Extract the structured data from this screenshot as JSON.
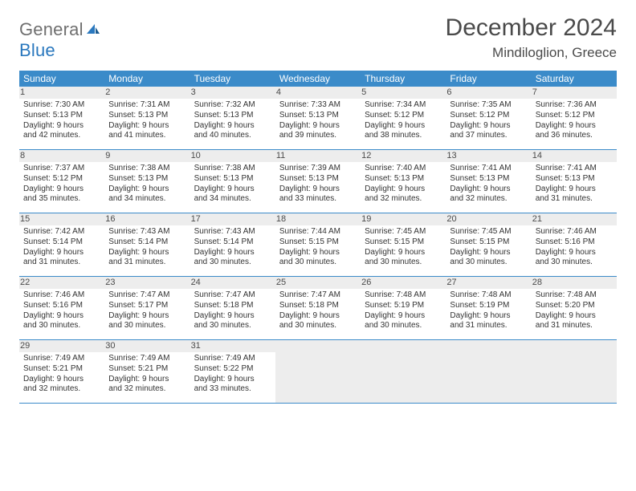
{
  "brand": {
    "part1": "General",
    "part2": "Blue"
  },
  "title": "December 2024",
  "location": "Mindiloglion, Greece",
  "colors": {
    "header_bg": "#3b8bc9",
    "header_text": "#ffffff",
    "day_num_bg": "#ededed",
    "text": "#333333",
    "title_text": "#4a4a4a",
    "border": "#3b8bc9",
    "logo_gray": "#6f6f6f",
    "logo_blue": "#2a78be"
  },
  "weekdays": [
    "Sunday",
    "Monday",
    "Tuesday",
    "Wednesday",
    "Thursday",
    "Friday",
    "Saturday"
  ],
  "weeks": [
    [
      {
        "n": "1",
        "sr": "Sunrise: 7:30 AM",
        "ss": "Sunset: 5:13 PM",
        "d1": "Daylight: 9 hours",
        "d2": "and 42 minutes."
      },
      {
        "n": "2",
        "sr": "Sunrise: 7:31 AM",
        "ss": "Sunset: 5:13 PM",
        "d1": "Daylight: 9 hours",
        "d2": "and 41 minutes."
      },
      {
        "n": "3",
        "sr": "Sunrise: 7:32 AM",
        "ss": "Sunset: 5:13 PM",
        "d1": "Daylight: 9 hours",
        "d2": "and 40 minutes."
      },
      {
        "n": "4",
        "sr": "Sunrise: 7:33 AM",
        "ss": "Sunset: 5:13 PM",
        "d1": "Daylight: 9 hours",
        "d2": "and 39 minutes."
      },
      {
        "n": "5",
        "sr": "Sunrise: 7:34 AM",
        "ss": "Sunset: 5:12 PM",
        "d1": "Daylight: 9 hours",
        "d2": "and 38 minutes."
      },
      {
        "n": "6",
        "sr": "Sunrise: 7:35 AM",
        "ss": "Sunset: 5:12 PM",
        "d1": "Daylight: 9 hours",
        "d2": "and 37 minutes."
      },
      {
        "n": "7",
        "sr": "Sunrise: 7:36 AM",
        "ss": "Sunset: 5:12 PM",
        "d1": "Daylight: 9 hours",
        "d2": "and 36 minutes."
      }
    ],
    [
      {
        "n": "8",
        "sr": "Sunrise: 7:37 AM",
        "ss": "Sunset: 5:12 PM",
        "d1": "Daylight: 9 hours",
        "d2": "and 35 minutes."
      },
      {
        "n": "9",
        "sr": "Sunrise: 7:38 AM",
        "ss": "Sunset: 5:13 PM",
        "d1": "Daylight: 9 hours",
        "d2": "and 34 minutes."
      },
      {
        "n": "10",
        "sr": "Sunrise: 7:38 AM",
        "ss": "Sunset: 5:13 PM",
        "d1": "Daylight: 9 hours",
        "d2": "and 34 minutes."
      },
      {
        "n": "11",
        "sr": "Sunrise: 7:39 AM",
        "ss": "Sunset: 5:13 PM",
        "d1": "Daylight: 9 hours",
        "d2": "and 33 minutes."
      },
      {
        "n": "12",
        "sr": "Sunrise: 7:40 AM",
        "ss": "Sunset: 5:13 PM",
        "d1": "Daylight: 9 hours",
        "d2": "and 32 minutes."
      },
      {
        "n": "13",
        "sr": "Sunrise: 7:41 AM",
        "ss": "Sunset: 5:13 PM",
        "d1": "Daylight: 9 hours",
        "d2": "and 32 minutes."
      },
      {
        "n": "14",
        "sr": "Sunrise: 7:41 AM",
        "ss": "Sunset: 5:13 PM",
        "d1": "Daylight: 9 hours",
        "d2": "and 31 minutes."
      }
    ],
    [
      {
        "n": "15",
        "sr": "Sunrise: 7:42 AM",
        "ss": "Sunset: 5:14 PM",
        "d1": "Daylight: 9 hours",
        "d2": "and 31 minutes."
      },
      {
        "n": "16",
        "sr": "Sunrise: 7:43 AM",
        "ss": "Sunset: 5:14 PM",
        "d1": "Daylight: 9 hours",
        "d2": "and 31 minutes."
      },
      {
        "n": "17",
        "sr": "Sunrise: 7:43 AM",
        "ss": "Sunset: 5:14 PM",
        "d1": "Daylight: 9 hours",
        "d2": "and 30 minutes."
      },
      {
        "n": "18",
        "sr": "Sunrise: 7:44 AM",
        "ss": "Sunset: 5:15 PM",
        "d1": "Daylight: 9 hours",
        "d2": "and 30 minutes."
      },
      {
        "n": "19",
        "sr": "Sunrise: 7:45 AM",
        "ss": "Sunset: 5:15 PM",
        "d1": "Daylight: 9 hours",
        "d2": "and 30 minutes."
      },
      {
        "n": "20",
        "sr": "Sunrise: 7:45 AM",
        "ss": "Sunset: 5:15 PM",
        "d1": "Daylight: 9 hours",
        "d2": "and 30 minutes."
      },
      {
        "n": "21",
        "sr": "Sunrise: 7:46 AM",
        "ss": "Sunset: 5:16 PM",
        "d1": "Daylight: 9 hours",
        "d2": "and 30 minutes."
      }
    ],
    [
      {
        "n": "22",
        "sr": "Sunrise: 7:46 AM",
        "ss": "Sunset: 5:16 PM",
        "d1": "Daylight: 9 hours",
        "d2": "and 30 minutes."
      },
      {
        "n": "23",
        "sr": "Sunrise: 7:47 AM",
        "ss": "Sunset: 5:17 PM",
        "d1": "Daylight: 9 hours",
        "d2": "and 30 minutes."
      },
      {
        "n": "24",
        "sr": "Sunrise: 7:47 AM",
        "ss": "Sunset: 5:18 PM",
        "d1": "Daylight: 9 hours",
        "d2": "and 30 minutes."
      },
      {
        "n": "25",
        "sr": "Sunrise: 7:47 AM",
        "ss": "Sunset: 5:18 PM",
        "d1": "Daylight: 9 hours",
        "d2": "and 30 minutes."
      },
      {
        "n": "26",
        "sr": "Sunrise: 7:48 AM",
        "ss": "Sunset: 5:19 PM",
        "d1": "Daylight: 9 hours",
        "d2": "and 30 minutes."
      },
      {
        "n": "27",
        "sr": "Sunrise: 7:48 AM",
        "ss": "Sunset: 5:19 PM",
        "d1": "Daylight: 9 hours",
        "d2": "and 31 minutes."
      },
      {
        "n": "28",
        "sr": "Sunrise: 7:48 AM",
        "ss": "Sunset: 5:20 PM",
        "d1": "Daylight: 9 hours",
        "d2": "and 31 minutes."
      }
    ],
    [
      {
        "n": "29",
        "sr": "Sunrise: 7:49 AM",
        "ss": "Sunset: 5:21 PM",
        "d1": "Daylight: 9 hours",
        "d2": "and 32 minutes."
      },
      {
        "n": "30",
        "sr": "Sunrise: 7:49 AM",
        "ss": "Sunset: 5:21 PM",
        "d1": "Daylight: 9 hours",
        "d2": "and 32 minutes."
      },
      {
        "n": "31",
        "sr": "Sunrise: 7:49 AM",
        "ss": "Sunset: 5:22 PM",
        "d1": "Daylight: 9 hours",
        "d2": "and 33 minutes."
      },
      null,
      null,
      null,
      null
    ]
  ]
}
